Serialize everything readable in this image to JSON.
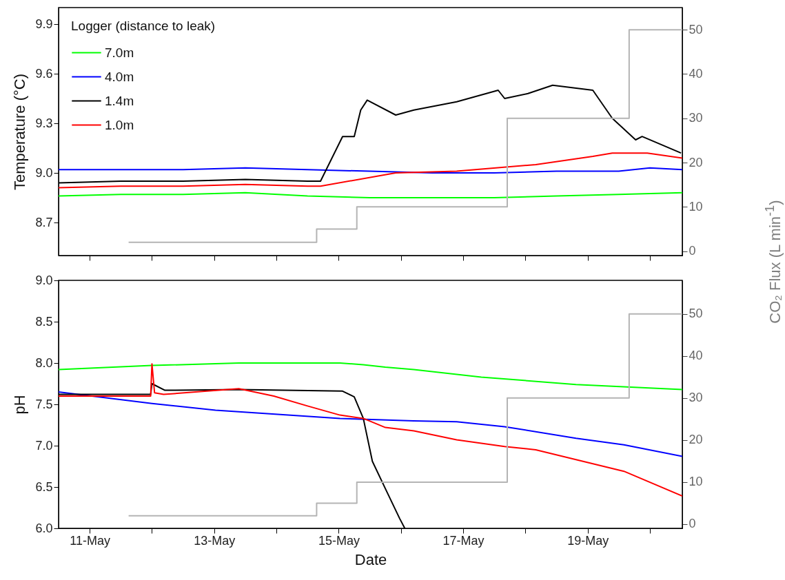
{
  "chart_data": [
    {
      "type": "line",
      "ylabel": "Temperature (°C)",
      "legend_title": "Logger (distance to leak)",
      "legend": "top left",
      "tick_labels": "y",
      "xlim": [
        "--05-10T12:00",
        "--05-20T12:30"
      ],
      "xticks": [
        {
          "value": "--05-11",
          "label": null
        },
        {
          "value": "--05-12",
          "label": null
        },
        {
          "value": "--05-13",
          "label": null
        },
        {
          "value": "--05-14",
          "label": null
        },
        {
          "value": "--05-15",
          "label": null
        },
        {
          "value": "--05-16",
          "label": null
        },
        {
          "value": "--05-17",
          "label": null
        },
        {
          "value": "--05-18",
          "label": null
        },
        {
          "value": "--05-19",
          "label": null
        },
        {
          "value": "--05-20",
          "label": null
        }
      ],
      "ylim": [
        8.5,
        10.0
      ],
      "yticks": [
        8.7,
        {
          "value": 9.0,
          "label": "9.0"
        },
        9.3,
        9.6,
        9.9
      ],
      "y2lim": [
        -1,
        55
      ],
      "y2ticks": [
        0,
        10,
        20,
        30,
        40,
        50
      ],
      "series": [
        {
          "name": "7.0m",
          "color": "#00ff00",
          "x": [
            "--05-10T12:00",
            "--05-11T12:00",
            "--05-12T12:00",
            "--05-13T12:00",
            "--05-14T12:00",
            "--05-15T12:00",
            "--05-16T12:00",
            "--05-17T12:00",
            "--05-18T12:00",
            "--05-19T12:00",
            "--05-20T12:30"
          ],
          "values": [
            8.86,
            8.87,
            8.87,
            8.88,
            8.86,
            8.85,
            8.85,
            8.85,
            8.86,
            8.87,
            8.88
          ]
        },
        {
          "name": "4.0m",
          "color": "#0000ff",
          "x": [
            "--05-10T12:00",
            "--05-11T12:00",
            "--05-12T12:00",
            "--05-13T12:00",
            "--05-14T12:00",
            "--05-15T12:00",
            "--05-16T12:00",
            "--05-17T12:00",
            "--05-18T12:00",
            "--05-19T12:00",
            "--05-20T00:00",
            "--05-20T12:30"
          ],
          "values": [
            9.02,
            9.02,
            9.02,
            9.03,
            9.02,
            9.01,
            9.0,
            9.0,
            9.01,
            9.01,
            9.03,
            9.02
          ]
        },
        {
          "name": "1.4m",
          "color": "#000000",
          "x": [
            "--05-10T12:00",
            "--05-11T12:00",
            "--05-12T12:00",
            "--05-13T12:00",
            "--05-14T12:00",
            "--05-14T17:00",
            "--05-15T01:30",
            "--05-15T06:00",
            "--05-15T08:30",
            "--05-15T11:00",
            "--05-15T22:00",
            "--05-16T05:00",
            "--05-16T21:30",
            "--05-17T13:30",
            "--05-17T16:00",
            "--05-18T01:00",
            "--05-18T10:30",
            "--05-19T02:00",
            "--05-19T09:30",
            "--05-19T18:30",
            "--05-19T21:00",
            "--05-20T12:00"
          ],
          "values": [
            8.94,
            8.95,
            8.95,
            8.96,
            8.95,
            8.95,
            9.22,
            9.22,
            9.38,
            9.44,
            9.35,
            9.38,
            9.43,
            9.5,
            9.45,
            9.48,
            9.53,
            9.5,
            9.33,
            9.2,
            9.22,
            9.12
          ]
        },
        {
          "name": "1.0m",
          "color": "#ff0000",
          "x": [
            "--05-10T12:00",
            "--05-11T12:00",
            "--05-12T12:00",
            "--05-13T12:00",
            "--05-14T12:00",
            "--05-14T17:00",
            "--05-15T22:00",
            "--05-16T21:30",
            "--05-18T04:00",
            "--05-19T02:00",
            "--05-19T09:30",
            "--05-19T23:00",
            "--05-20T12:30"
          ],
          "values": [
            8.91,
            8.92,
            8.92,
            8.93,
            8.92,
            8.92,
            9.0,
            9.01,
            9.05,
            9.1,
            9.12,
            9.12,
            9.09
          ]
        },
        {
          "type": "step",
          "axis": "y2",
          "color": "#b4b4b4",
          "x": [
            "--05-11T15:00",
            "--05-14T15:30",
            "--05-15T07:00",
            "--05-17T17:00",
            "--05-19T16:00",
            "--05-20T12:30"
          ],
          "values": [
            2,
            5,
            10,
            30,
            50,
            50
          ]
        }
      ]
    },
    {
      "type": "line",
      "xlabel": "Date",
      "ylabel": "pH",
      "y2label": "CO₂ Flux (L min$^{-1}$)",
      "xlim": [
        "--05-10T12:00",
        "--05-20T12:30"
      ],
      "xticks": [
        {
          "value": "--05-11",
          "label": "11-May"
        },
        {
          "value": "--05-12",
          "label": null
        },
        {
          "value": "--05-13",
          "label": "13-May"
        },
        {
          "value": "--05-14",
          "label": null
        },
        {
          "value": "--05-15",
          "label": "15-May"
        },
        {
          "value": "--05-16",
          "label": null
        },
        {
          "value": "--05-17",
          "label": "17-May"
        },
        {
          "value": "--05-18",
          "label": null
        },
        {
          "value": "--05-19",
          "label": "19-May"
        },
        {
          "value": "--05-20",
          "label": null
        }
      ],
      "ylim": [
        6.0,
        9.0
      ],
      "yticks": [
        {
          "value": 6.0,
          "label": "6.0"
        },
        6.5,
        {
          "value": 7.0,
          "label": "7.0"
        },
        7.5,
        {
          "value": 8.0,
          "label": "8.0"
        },
        8.5,
        {
          "value": 9.0,
          "label": "9.0"
        }
      ],
      "y2lim": [
        -1,
        58
      ],
      "y2ticks": [
        0,
        10,
        20,
        30,
        40,
        50
      ],
      "series": [
        {
          "color": "#00ff00",
          "x": [
            "--05-10T12:00",
            "--05-12T00:00",
            "--05-13T09:30",
            "--05-15T00:30",
            "--05-15T09:30",
            "--05-15T18:00",
            "--05-16T05:00",
            "--05-17T07:00",
            "--05-18T19:30",
            "--05-20T12:30"
          ],
          "values": [
            7.92,
            7.97,
            8.0,
            8.0,
            7.98,
            7.95,
            7.92,
            7.83,
            7.74,
            7.68
          ]
        },
        {
          "color": "#0000ff",
          "x": [
            "--05-10T12:00",
            "--05-12T00:00",
            "--05-13T00:30",
            "--05-14T00:30",
            "--05-15T00:30",
            "--05-16T05:00",
            "--05-16T21:30",
            "--05-17T16:00",
            "--05-18T19:30",
            "--05-19T14:00",
            "--05-20T12:30"
          ],
          "values": [
            7.65,
            7.51,
            7.43,
            7.38,
            7.33,
            7.3,
            7.29,
            7.23,
            7.09,
            7.01,
            6.87
          ]
        },
        {
          "color": "#000000",
          "x": [
            "--05-10T12:00",
            "--05-11T23:30",
            "--05-12T00:00",
            "--05-12T05:00",
            "--05-13T09:30",
            "--05-15T01:30",
            "--05-15T06:00",
            "--05-15T09:30",
            "--05-15T13:00",
            "--05-15T18:00",
            "--05-15T23:30",
            "--05-16T01:30"
          ],
          "values": [
            7.62,
            7.62,
            7.75,
            7.67,
            7.68,
            7.66,
            7.59,
            7.33,
            6.81,
            6.48,
            6.12,
            6.0
          ]
        },
        {
          "color": "#ff0000",
          "x": [
            "--05-10T12:00",
            "--05-11T23:30",
            "--05-12T00:00",
            "--05-12T01:00",
            "--05-12T04:30",
            "--05-13T09:30",
            "--05-13T23:00",
            "--05-14T12:00",
            "--05-15T00:30",
            "--05-15T09:30",
            "--05-15T18:00",
            "--05-16T05:00",
            "--05-16T21:30",
            "--05-17T16:00",
            "--05-18T04:00",
            "--05-19T14:00",
            "--05-20T12:30"
          ],
          "values": [
            7.6,
            7.6,
            7.99,
            7.64,
            7.62,
            7.69,
            7.6,
            7.48,
            7.37,
            7.33,
            7.22,
            7.18,
            7.07,
            6.99,
            6.95,
            6.69,
            6.39
          ]
        },
        {
          "type": "step",
          "axis": "y2",
          "color": "#b4b4b4",
          "x": [
            "--05-11T15:00",
            "--05-14T15:30",
            "--05-15T07:00",
            "--05-17T17:00",
            "--05-19T16:00",
            "--05-20T12:30"
          ],
          "values": [
            2,
            5,
            10,
            30,
            50,
            50
          ]
        }
      ]
    }
  ]
}
